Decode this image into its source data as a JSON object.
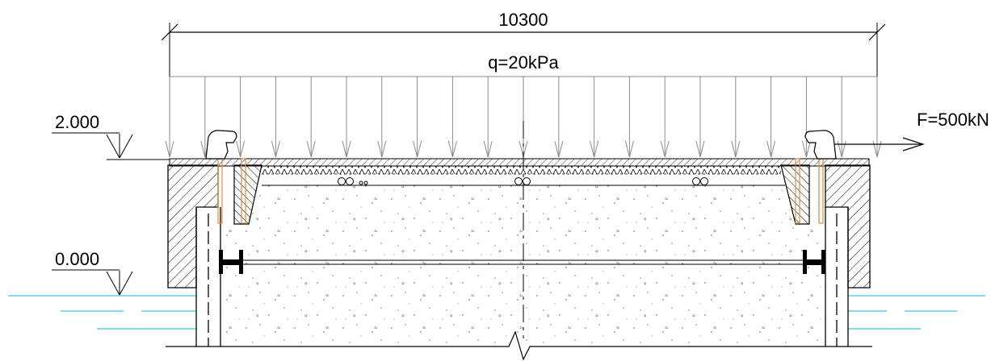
{
  "dimension": {
    "span": "10300"
  },
  "load": {
    "distributed": "q=20kPa",
    "point": "F=500kN"
  },
  "levels": {
    "top": "2.000",
    "water": "0.000"
  },
  "colors": {
    "line": "#000000",
    "thin": "#555555",
    "arrow": "#8a8a8a",
    "water": "#3cc4e6",
    "anchor": "#e08a3c"
  }
}
